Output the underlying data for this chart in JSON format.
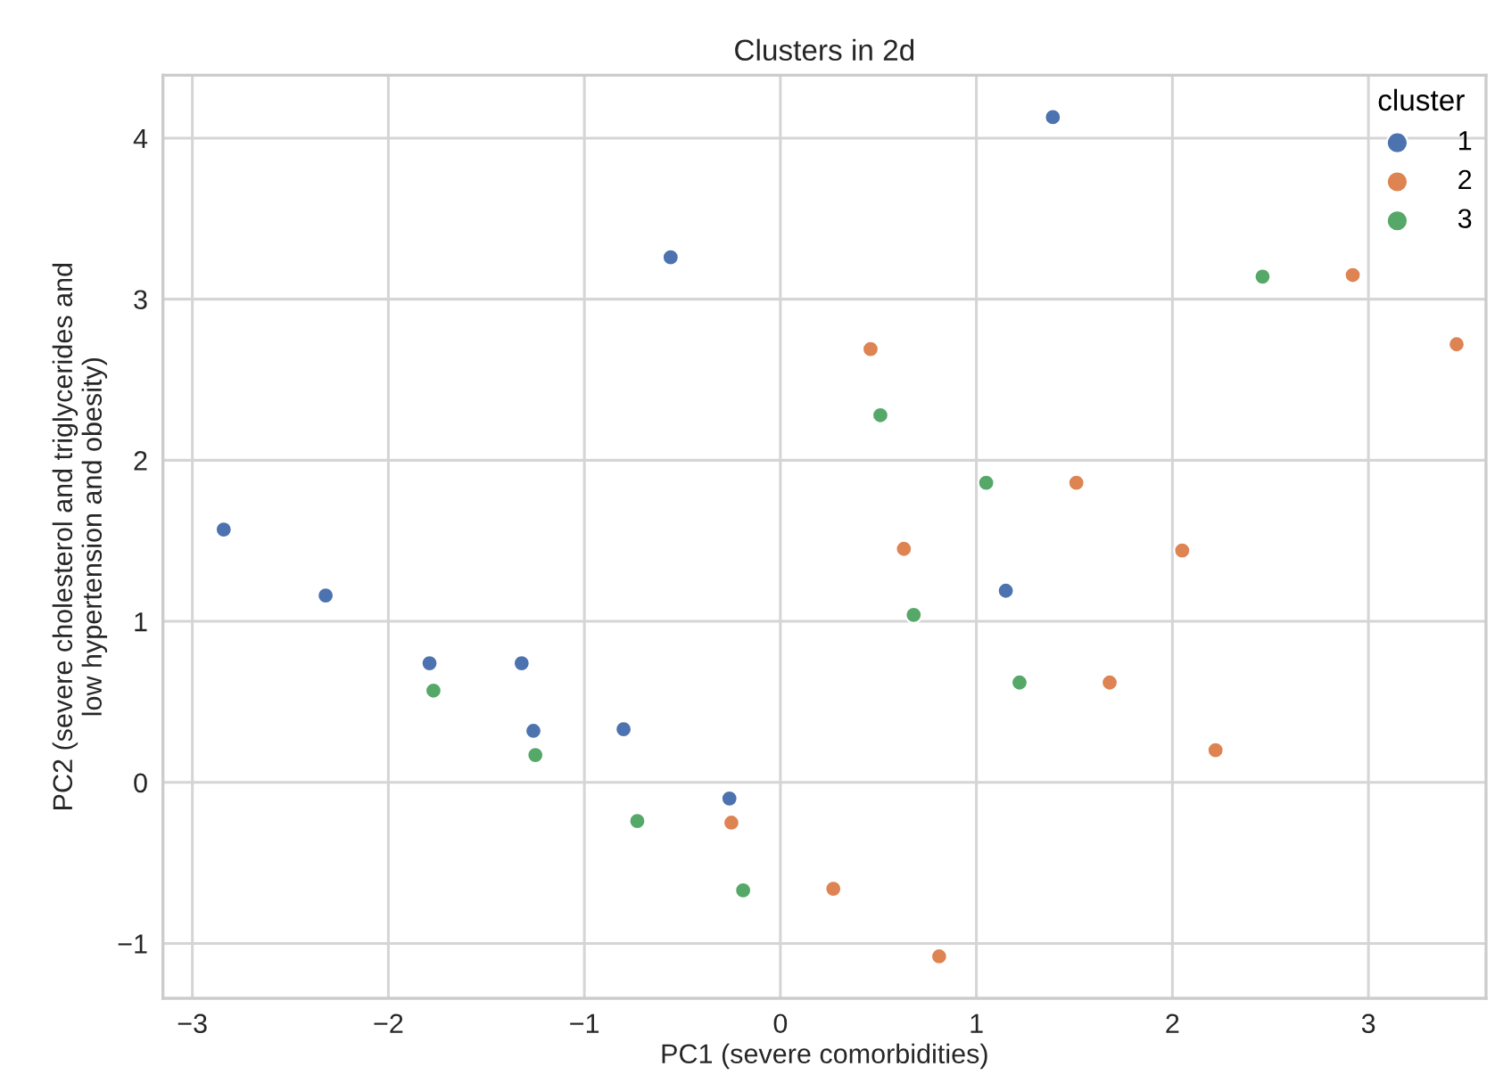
{
  "chart_data": {
    "type": "scatter",
    "title": "Clusters in 2d",
    "xlabel": "PC1 (severe comorbidities)",
    "ylabel": "PC2 (severe cholesterol and triglycerides and\nlow hypertension and obesity)",
    "legend_title": "cluster",
    "series": [
      {
        "name": "1",
        "color": "#4c72b0",
        "x": [
          1.39,
          -0.56,
          -2.84,
          -2.32,
          -1.79,
          -1.32,
          -1.26,
          -0.8,
          -0.26,
          1.15
        ],
        "values": [
          4.13,
          3.26,
          1.57,
          1.16,
          0.74,
          0.74,
          0.32,
          0.33,
          -0.1,
          1.19
        ]
      },
      {
        "name": "2",
        "color": "#dd8452",
        "x": [
          2.92,
          3.45,
          0.46,
          1.51,
          0.63,
          2.05,
          1.68,
          2.22,
          0.27,
          0.81,
          -0.25
        ],
        "values": [
          3.15,
          2.72,
          2.69,
          1.86,
          1.45,
          1.44,
          0.62,
          0.2,
          -0.66,
          -1.08,
          -0.25
        ]
      },
      {
        "name": "3",
        "color": "#55a868",
        "x": [
          2.46,
          0.51,
          1.05,
          0.68,
          1.22,
          -1.77,
          -1.25,
          -0.73,
          -0.19
        ],
        "values": [
          3.14,
          2.28,
          1.86,
          1.04,
          0.62,
          0.57,
          0.17,
          -0.24,
          -0.67
        ]
      }
    ],
    "xlim": [
      -3.15,
      3.6
    ],
    "ylim": [
      -1.34,
      4.39
    ],
    "xticks": [
      -3,
      -2,
      -1,
      0,
      1,
      2,
      3
    ],
    "yticks": [
      -1,
      0,
      1,
      2,
      3,
      4
    ],
    "grid": true,
    "legend": "top right",
    "marker": "circle"
  }
}
